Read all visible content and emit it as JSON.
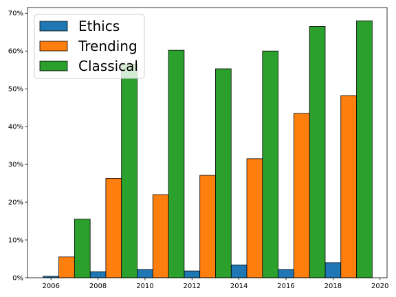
{
  "chart_data": {
    "type": "bar",
    "x_ticks": [
      "2006",
      "2008",
      "2010",
      "2012",
      "2014",
      "2016",
      "2018",
      "2020"
    ],
    "y_ticks": [
      "0%",
      "10%",
      "20%",
      "30%",
      "40%",
      "50%",
      "60%",
      "70%"
    ],
    "xlim": [
      2005.0,
      2020.3
    ],
    "ylim": [
      0,
      71.5
    ],
    "legend_position": "top-left",
    "grid": false,
    "groups": [
      2006,
      2008,
      2010,
      2012,
      2014,
      2016,
      2018
    ],
    "series": [
      {
        "name": "Ethics",
        "color": "#1f77b4",
        "offset": 0,
        "values": [
          0.4,
          1.6,
          2.2,
          1.8,
          3.4,
          2.2,
          4.0
        ]
      },
      {
        "name": "Trending",
        "color": "#ff7f0e",
        "offset": 0.667,
        "values": [
          5.5,
          26.3,
          22.0,
          27.1,
          31.5,
          43.5,
          48.2
        ]
      },
      {
        "name": "Classical",
        "color": "#2ca02c",
        "offset": 1.333,
        "values": [
          15.5,
          56.5,
          60.2,
          55.3,
          60.0,
          66.5,
          68.0
        ]
      }
    ]
  }
}
